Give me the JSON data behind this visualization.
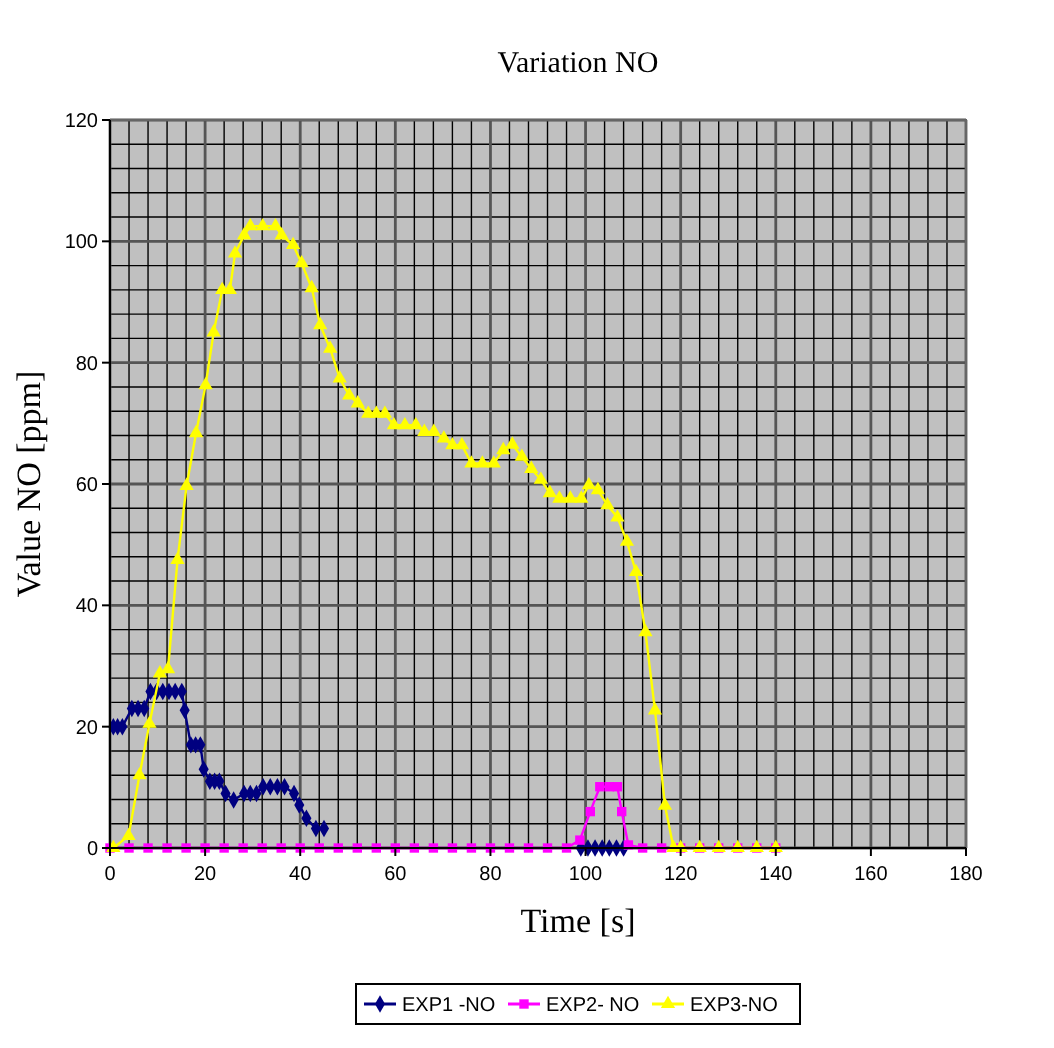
{
  "chart_data": {
    "type": "line",
    "title": "Variation NO",
    "xlabel": "Time [s]",
    "ylabel": "Value NO [ppm]",
    "xlim": [
      0,
      180
    ],
    "ylim": [
      0,
      120
    ],
    "xticks": [
      0,
      20,
      40,
      60,
      80,
      100,
      120,
      140,
      160,
      180
    ],
    "yticks": [
      0,
      20,
      40,
      60,
      80,
      100,
      120
    ],
    "grid": true,
    "legend": "bottom",
    "series": [
      {
        "name": "EXP1 -NO",
        "color": "#000080",
        "marker": "diamond",
        "x": [
          0.7,
          1.6,
          2.6,
          4.6,
          5.9,
          7.2,
          8.5,
          9.8,
          11.1,
          12.4,
          13.7,
          15.1,
          15.7,
          17,
          18,
          19,
          19.7,
          21,
          22,
          23,
          24.3,
          26,
          28.2,
          29.5,
          30.8,
          32.2,
          33.7,
          35.2,
          36.7,
          38.7,
          39.8,
          41.3,
          43.3,
          45,
          46,
          99,
          100.5,
          102,
          103.5,
          105,
          106.5,
          108
        ],
        "values": [
          20,
          20,
          20,
          23,
          23,
          23,
          25.8,
          25.8,
          25.8,
          25.8,
          25.8,
          25.8,
          22.7,
          17,
          17,
          17,
          13,
          11,
          11,
          11,
          9,
          7.9,
          9,
          9,
          9,
          10.1,
          10.1,
          10.1,
          10.1,
          9,
          7.1,
          4.9,
          3.2,
          3.2,
          null,
          0,
          0,
          0,
          0,
          0,
          0,
          0
        ]
      },
      {
        "name": "EXP2- NO",
        "color": "#ff00ff",
        "marker": "square",
        "x": [
          0,
          4,
          8,
          12,
          16,
          20,
          24,
          28,
          32,
          36,
          40,
          44,
          48,
          52,
          56,
          60,
          64,
          68,
          72,
          76,
          80,
          84,
          88,
          92,
          96,
          98.8,
          101,
          103,
          105,
          106.7,
          107.6,
          109,
          112,
          116,
          120,
          124,
          128,
          132,
          136,
          140
        ],
        "values": [
          0,
          0,
          0,
          0,
          0,
          0,
          0,
          0,
          0,
          0,
          0,
          0,
          0,
          0,
          0,
          0,
          0,
          0,
          0,
          0,
          0,
          0,
          0,
          0,
          0,
          1.3,
          6,
          10.1,
          10.1,
          10.1,
          6,
          0.5,
          0,
          0,
          0,
          0,
          0,
          0,
          0,
          0
        ]
      },
      {
        "name": "EXP3-NO",
        "color": "#ffff00",
        "marker": "triangle",
        "x": [
          0.7,
          3.9,
          6.2,
          8.3,
          10.5,
          12.2,
          14.2,
          16.1,
          18.1,
          20.1,
          21.8,
          23.6,
          25.2,
          26.3,
          28.2,
          29.5,
          32.1,
          34.8,
          36.1,
          38.5,
          40.3,
          42.4,
          44.2,
          46.3,
          48.3,
          50.3,
          52.1,
          54.3,
          56,
          57.8,
          59.7,
          62,
          64.3,
          66.1,
          68.1,
          70.2,
          72,
          74,
          76,
          78.3,
          80.7,
          82.7,
          84.6,
          86.6,
          88.6,
          90.6,
          92.5,
          94.5,
          96.8,
          99.1,
          100.7,
          102.6,
          104.6,
          106.7,
          108.7,
          110.6,
          112.6,
          114.6,
          116.7,
          118.5,
          120,
          124,
          128,
          132,
          136,
          140
        ],
        "values": [
          0,
          2,
          12,
          20.5,
          28.8,
          29.5,
          47.5,
          59.7,
          68.4,
          76.3,
          85,
          92,
          92,
          98,
          101,
          102.5,
          102.5,
          102.5,
          101,
          99.4,
          96.4,
          92.3,
          86.2,
          82.3,
          77.4,
          74.6,
          73.3,
          71.6,
          71.6,
          71.6,
          69.7,
          69.7,
          69.7,
          68.6,
          68.6,
          67.5,
          66.4,
          66.4,
          63.4,
          63.4,
          63.4,
          65.6,
          66.5,
          64.5,
          62.5,
          60.7,
          58.5,
          57.6,
          57.6,
          57.6,
          59.8,
          59,
          56.5,
          54.5,
          50.5,
          45.5,
          35.6,
          22.7,
          7,
          0,
          0,
          0,
          0,
          0,
          0,
          0
        ]
      }
    ]
  }
}
